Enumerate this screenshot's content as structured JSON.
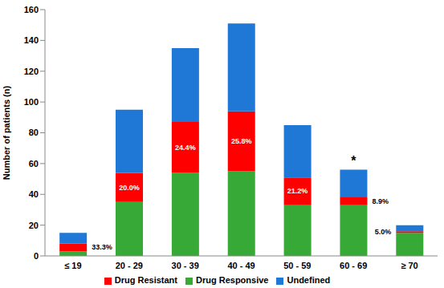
{
  "chart_data": {
    "type": "bar",
    "stacked": true,
    "grid": false,
    "legend": "bottom",
    "y_label": "Number of patients (n)",
    "categories": [
      "≤ 19",
      "20 - 29",
      "30 - 39",
      "40 - 49",
      "50 - 59",
      "60 - 69",
      "≥ 70"
    ],
    "series": [
      {
        "name": "Drug Responsive",
        "color": "#36a936",
        "values": [
          3,
          35,
          54,
          55,
          33,
          33,
          15
        ]
      },
      {
        "name": "Drug Resistant",
        "color": "#ff0000",
        "values": [
          5,
          19,
          33,
          39,
          18,
          5,
          1
        ]
      },
      {
        "name": "Undefined",
        "color": "#1f78d6",
        "values": [
          7,
          41,
          48,
          57,
          34,
          18,
          4
        ]
      }
    ],
    "ylim": [
      0,
      160
    ],
    "yticks": [
      0,
      20,
      40,
      60,
      80,
      100,
      120,
      140,
      160
    ],
    "annotations": [
      {
        "category": "≤ 19",
        "series": "Drug Resistant",
        "text": "33.3%"
      },
      {
        "category": "20 - 29",
        "series": "Drug Resistant",
        "text": "20.0%"
      },
      {
        "category": "30 - 39",
        "series": "Drug Resistant",
        "text": "24.4%"
      },
      {
        "category": "40 - 49",
        "series": "Drug Resistant",
        "text": "25.8%"
      },
      {
        "category": "50 - 59",
        "series": "Drug Resistant",
        "text": "21.2%"
      },
      {
        "category": "60 - 69",
        "series": "Drug Resistant",
        "text": "8.9%"
      },
      {
        "category": "≥ 70",
        "series": "Drug Resistant",
        "text": "5.0%"
      },
      {
        "category": "60 - 69",
        "series": "Undefined",
        "text": "*"
      }
    ]
  }
}
